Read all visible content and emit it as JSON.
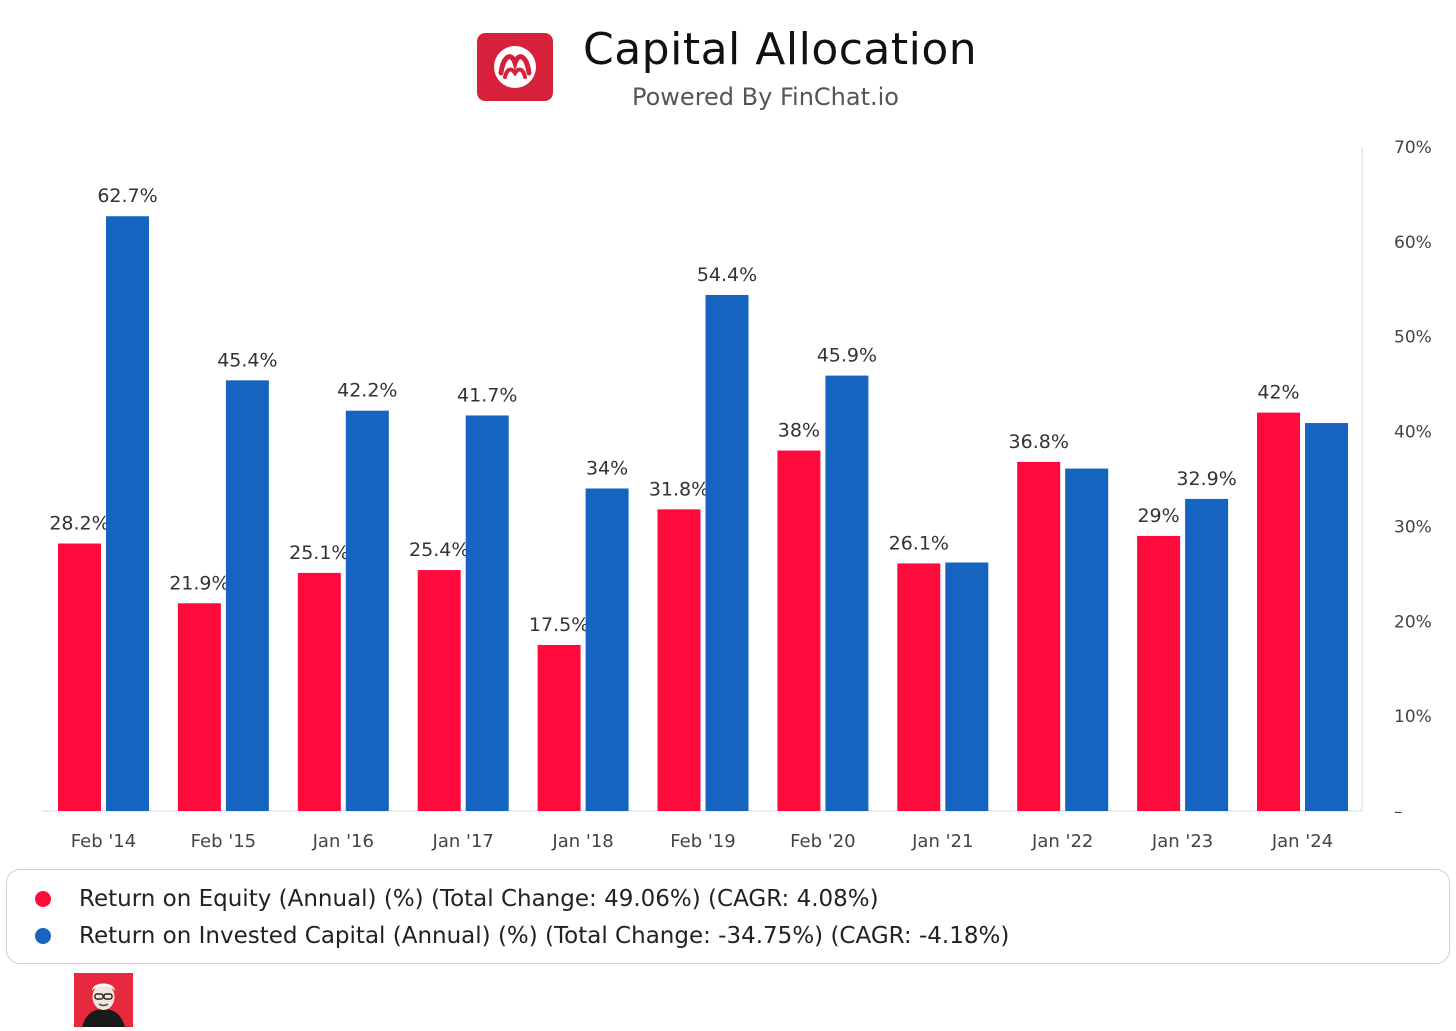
{
  "header": {
    "title": "Capital Allocation",
    "subtitle": "Powered By FinChat.io",
    "logo_icon": "lululemon-logo-icon",
    "logo_color": "#d7213a"
  },
  "chart_data": {
    "type": "bar",
    "categories": [
      "Feb '14",
      "Feb '15",
      "Jan '16",
      "Jan '17",
      "Jan '18",
      "Feb '19",
      "Feb '20",
      "Jan '21",
      "Jan '22",
      "Jan '23",
      "Jan '24"
    ],
    "series": [
      {
        "name": "Return on Equity (Annual) (%) (Total Change: 49.06%) (CAGR: 4.08%)",
        "color": "#ff0a3c",
        "values": [
          28.2,
          21.9,
          25.1,
          25.4,
          17.5,
          31.8,
          38,
          26.1,
          36.8,
          29,
          42
        ],
        "labels": [
          "28.2%",
          "21.9%",
          "25.1%",
          "25.4%",
          "17.5%",
          "31.8%",
          "38%",
          "26.1%",
          "36.8%",
          "29%",
          "42%"
        ]
      },
      {
        "name": "Return on Invested Capital (Annual) (%) (Total Change: -34.75%) (CAGR: -4.18%)",
        "color": "#1565c0",
        "values": [
          62.7,
          45.4,
          42.2,
          41.7,
          34,
          54.4,
          45.9,
          26.2,
          36.1,
          32.9,
          40.9
        ],
        "labels": [
          "62.7%",
          "45.4%",
          "42.2%",
          "41.7%",
          "34%",
          "54.4%",
          "45.9%",
          "",
          "",
          "32.9%",
          ""
        ]
      }
    ],
    "y_ticks": [
      {
        "value": 0,
        "label": "–"
      },
      {
        "value": 10,
        "label": "10%"
      },
      {
        "value": 20,
        "label": "20%"
      },
      {
        "value": 30,
        "label": "30%"
      },
      {
        "value": 40,
        "label": "40%"
      },
      {
        "value": 50,
        "label": "50%"
      },
      {
        "value": 60,
        "label": "60%"
      },
      {
        "value": 70,
        "label": "70%"
      }
    ],
    "ylim": [
      0,
      70
    ],
    "yaxis_position": "right",
    "grid": false,
    "legend_position": "bottom"
  },
  "footer": {
    "avatar_icon": "investor-portrait-icon",
    "avatar_bg": "#e8283c"
  }
}
